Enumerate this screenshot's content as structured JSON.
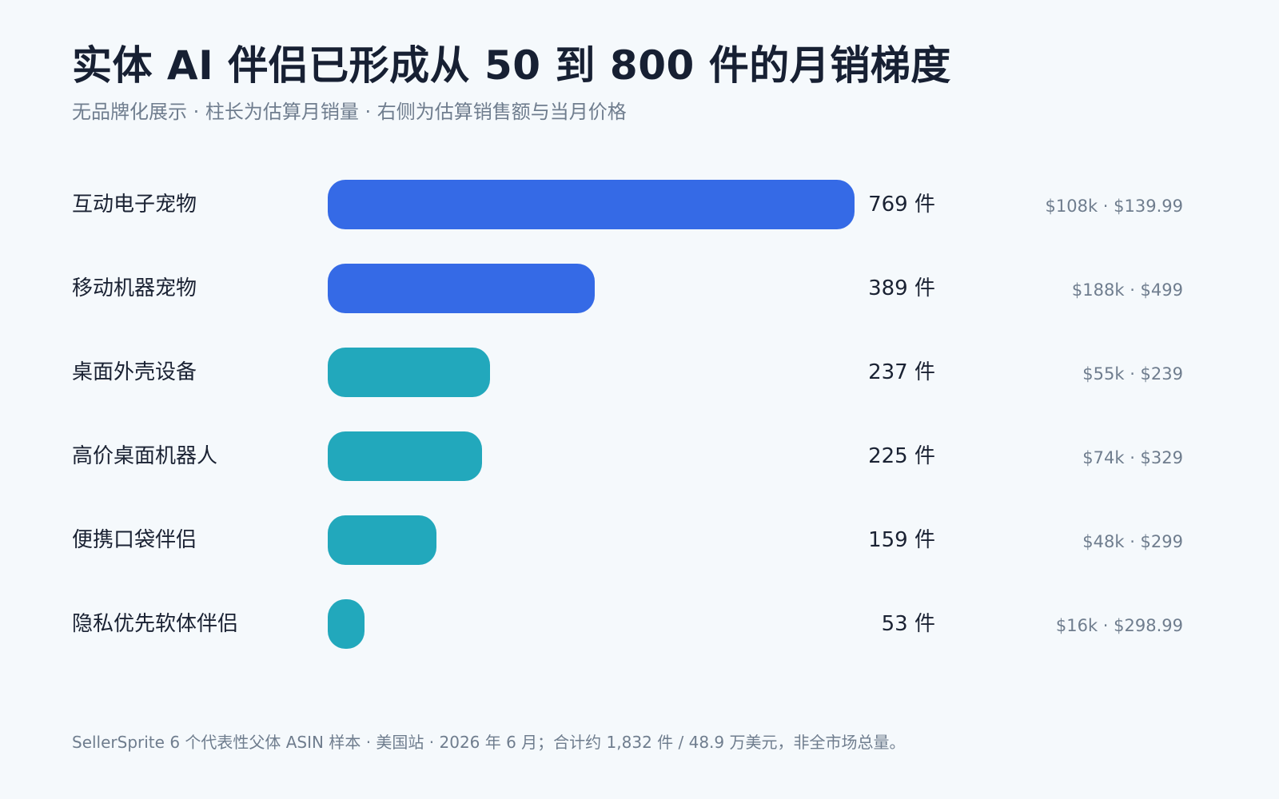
{
  "title": "实体 AI 伴侣已形成从 50 到 800 件的月销梯度",
  "subtitle": "无品牌化展示 · 柱长为估算月销量 · 右侧为估算销售额与当月价格",
  "footnote": "SellerSprite 6 个代表性父体 ASIN 样本 · 美国站 · 2026 年 6 月；合计约 1,832 件 / 48.9 万美元，非全市场总量。",
  "colors": {
    "primary": "#356ae6",
    "secondary": "#22a8bc",
    "background": "#f5f9fc",
    "text": "#1a2233",
    "muted": "#6f7d8e"
  },
  "chart_data": {
    "type": "bar",
    "orientation": "horizontal",
    "xlim": [
      0,
      800
    ],
    "grid": false,
    "categories": [
      "互动电子宠物",
      "移动机器宠物",
      "桌面外壳设备",
      "高价桌面机器人",
      "便携口袋伴侣",
      "隐私优先软体伴侣"
    ],
    "values": [
      769,
      389,
      237,
      225,
      159,
      53
    ],
    "value_labels": [
      "769 件",
      "389 件",
      "237 件",
      "225 件",
      "159 件",
      "53 件"
    ],
    "annotations": [
      "$108k · $139.99",
      "$188k · $499",
      "$55k · $239",
      "$74k · $329",
      "$48k · $299",
      "$16k · $298.99"
    ],
    "bar_colors": [
      "#356ae6",
      "#356ae6",
      "#22a8bc",
      "#22a8bc",
      "#22a8bc",
      "#22a8bc"
    ]
  }
}
